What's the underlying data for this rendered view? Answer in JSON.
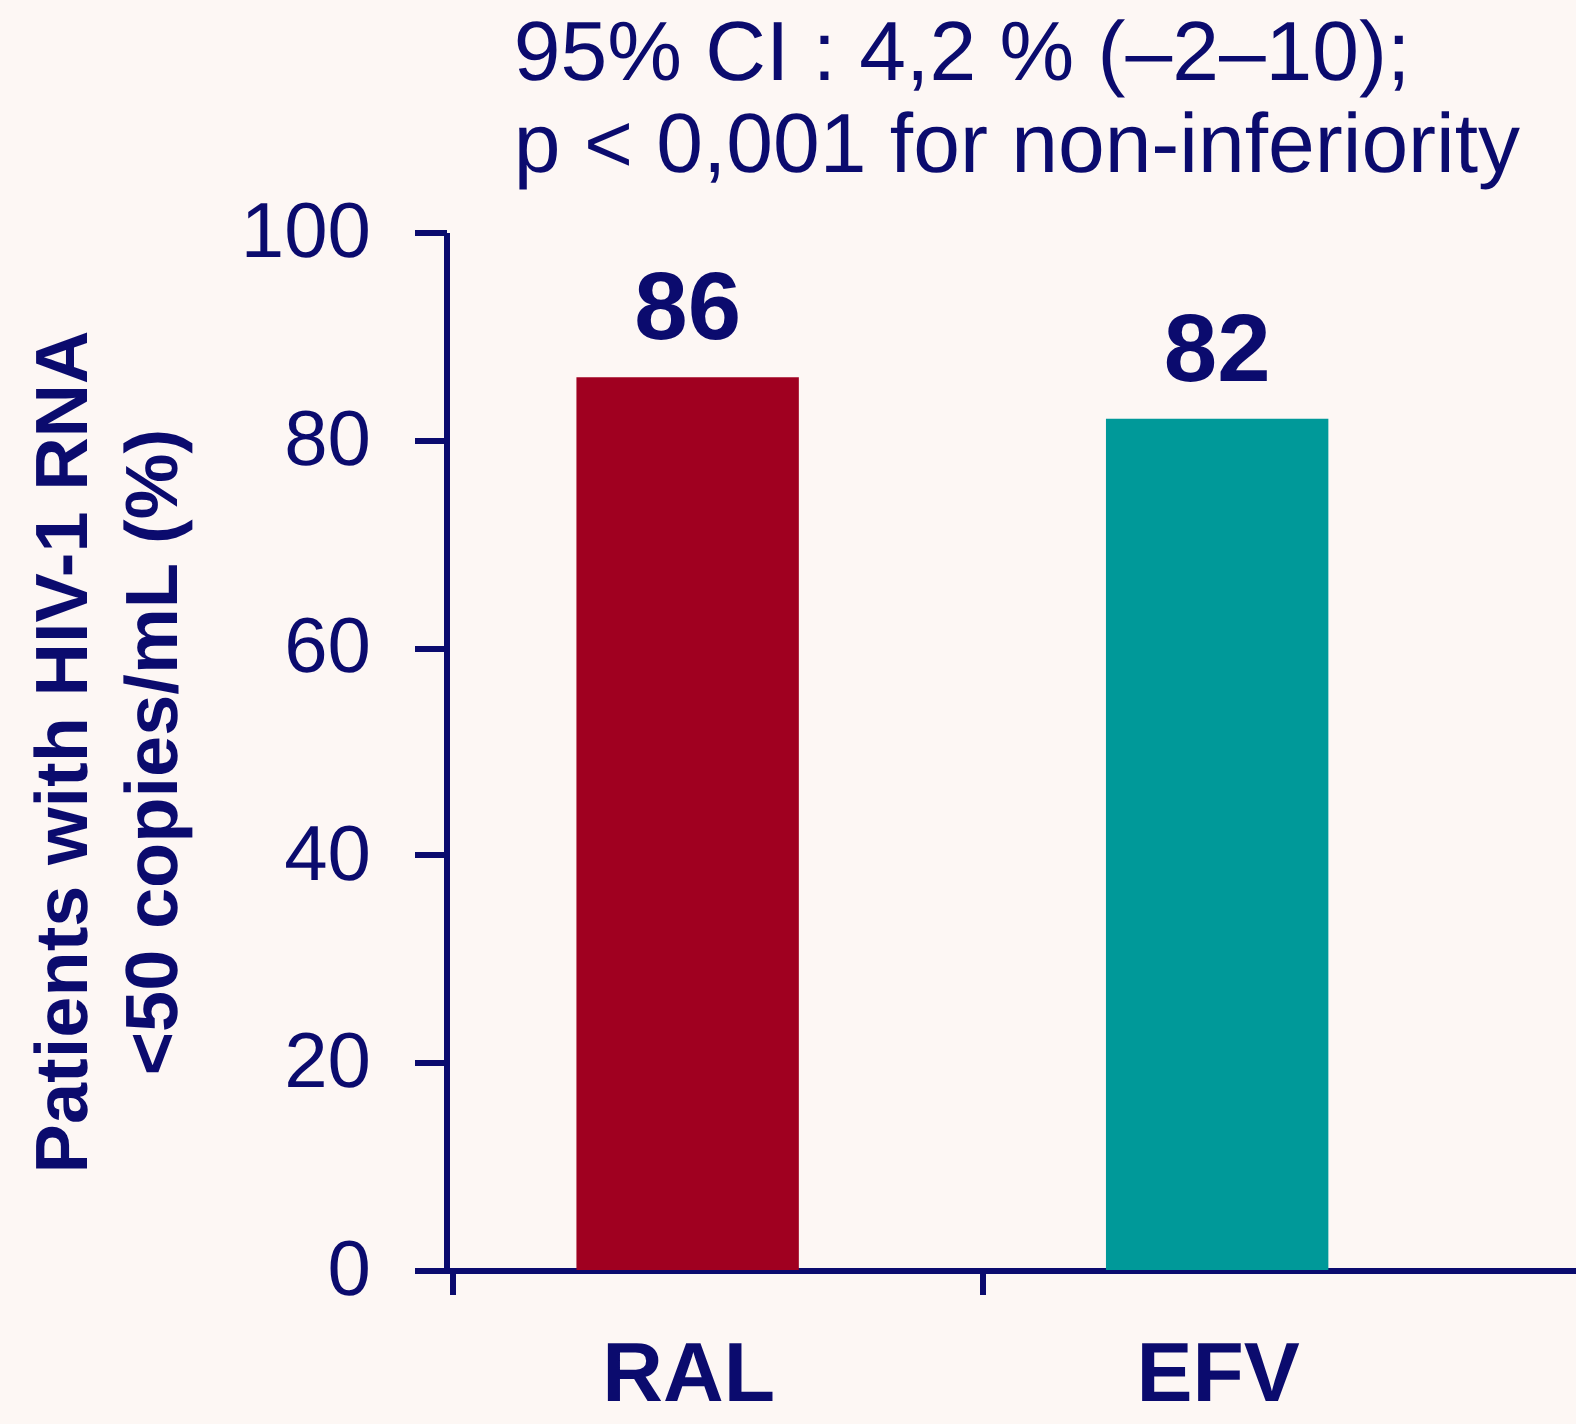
{
  "chart_data": {
    "type": "bar",
    "annotations": [
      "95% CI : 4,2 % (–2–10);\np < 0,001 for non-inferiority"
    ],
    "ylabel": "Patients with HIV-1 RNA\n<50 copies/mL (%)",
    "categories": [
      "RAL",
      "EFV"
    ],
    "values": [
      86,
      82
    ],
    "colors": [
      "#a00020",
      "#009999"
    ],
    "ylim": [
      0,
      100
    ],
    "yticks": [
      0,
      20,
      40,
      60,
      80,
      100
    ],
    "data_labels": true
  }
}
